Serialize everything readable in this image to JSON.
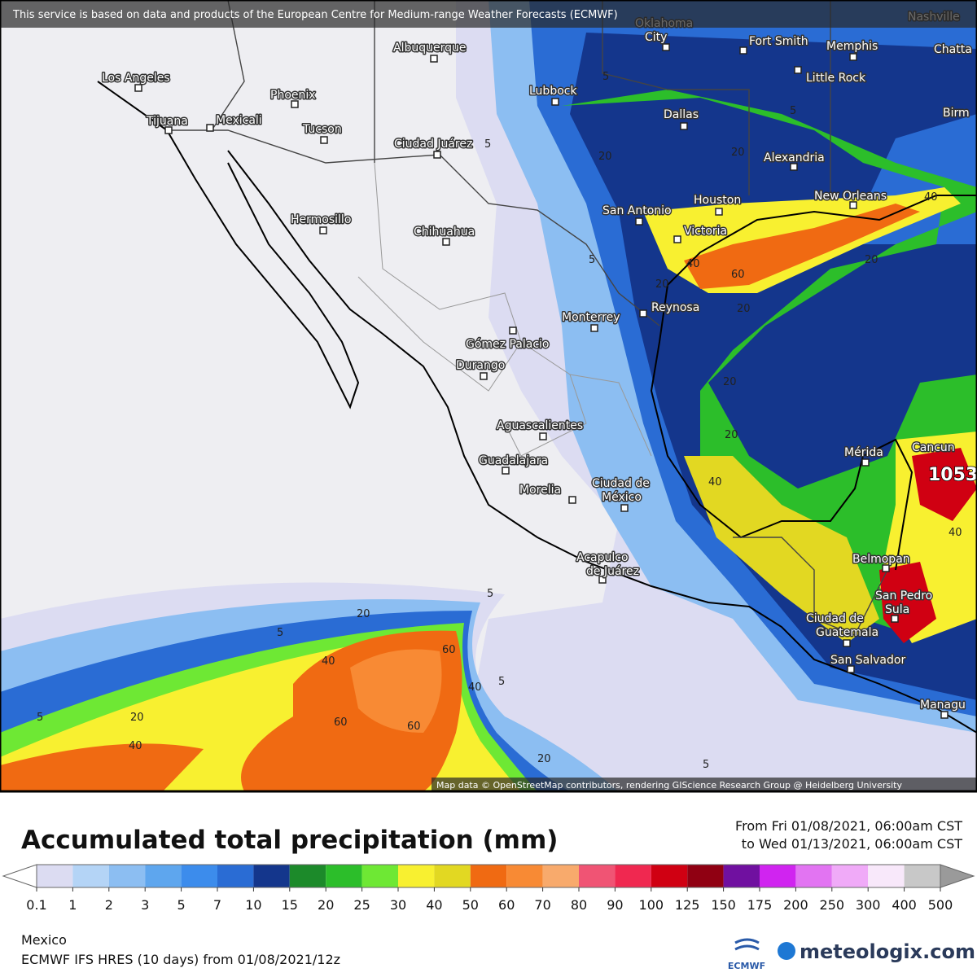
{
  "notice": "This service is based on data and products of the European Centre for Medium-range Weather Forecasts (ECMWF)",
  "attribution": "Map data © OpenStreetMap contributors, rendering GIScience Research Group @ Heidelberg University",
  "cities": [
    [
      "Los Angeles"
    ],
    [
      "Tijuana"
    ],
    [
      "Mexicali"
    ],
    [
      "Phoenix"
    ],
    [
      "Tucson"
    ],
    [
      "Albuquerque"
    ],
    [
      "Lubbock"
    ],
    [
      "Oklahoma",
      "City"
    ],
    [
      "Fort Smith"
    ],
    [
      "Memphis"
    ],
    [
      "Little Rock"
    ],
    [
      "Nashville"
    ],
    [
      "Chatta"
    ],
    [
      "Birm"
    ],
    [
      "Dallas"
    ],
    [
      "Alexandria"
    ],
    [
      "Houston"
    ],
    [
      "San Antonio"
    ],
    [
      "Victoria"
    ],
    [
      "New Orleans"
    ],
    [
      "Ciudad Juárez"
    ],
    [
      "Hermosillo"
    ],
    [
      "Chihuahua"
    ],
    [
      "Monterrey"
    ],
    [
      "Reynosa"
    ],
    [
      "Gómez Palacio"
    ],
    [
      "Durango"
    ],
    [
      "Aguascalientes"
    ],
    [
      "Guadalajara"
    ],
    [
      "Morelia"
    ],
    [
      "Ciudad de",
      "México"
    ],
    [
      "Acapulco",
      "de Juárez"
    ],
    [
      "Mérida"
    ],
    [
      "Cancun"
    ],
    [
      "Belmopan"
    ],
    [
      "San Pedro",
      "Sula"
    ],
    [
      "Ciudad de",
      "Guatemala"
    ],
    [
      "San Salvador"
    ],
    [
      "Managu"
    ]
  ],
  "contour_labels": [
    5,
    5,
    5,
    5,
    5,
    5,
    5,
    5,
    5,
    20,
    20,
    20,
    20,
    20,
    20,
    20,
    20,
    20,
    20,
    40,
    40,
    40,
    40,
    40,
    40,
    40,
    60,
    60,
    60,
    60
  ],
  "pressure_label": 1053,
  "title": "Accumulated total precipitation (mm)",
  "period": [
    "From Fri 01/08/2021, 06:00am CST",
    "to Wed 01/13/2021, 06:00am CST"
  ],
  "legend": {
    "ticks": [
      0.1,
      1,
      2,
      3,
      5,
      7,
      10,
      15,
      20,
      25,
      30,
      40,
      50,
      60,
      70,
      80,
      90,
      100,
      125,
      150,
      175,
      200,
      250,
      300,
      400,
      500
    ],
    "colors": [
      "#dcdcf2",
      "#b4d4f6",
      "#8cbef2",
      "#5ea6ee",
      "#3c8cec",
      "#2a6cd4",
      "#14368c",
      "#1c8a2a",
      "#2cbe2a",
      "#6ee834",
      "#f8f030",
      "#e2d822",
      "#f06a12",
      "#f88a34",
      "#f8aa6c",
      "#f05474",
      "#f02850",
      "#d00012",
      "#900012",
      "#7010a0",
      "#d024f0",
      "#e274f2",
      "#f0aaf8",
      "#f8e8fa",
      "#c8c8c8"
    ],
    "under_color": "#ffffff",
    "over_color": "#9a9a9a"
  },
  "region": "Mexico",
  "model": "ECMWF IFS HRES (10 days) from 01/08/2021/12z",
  "logos": [
    "ECMWF",
    "meteologix.com"
  ]
}
